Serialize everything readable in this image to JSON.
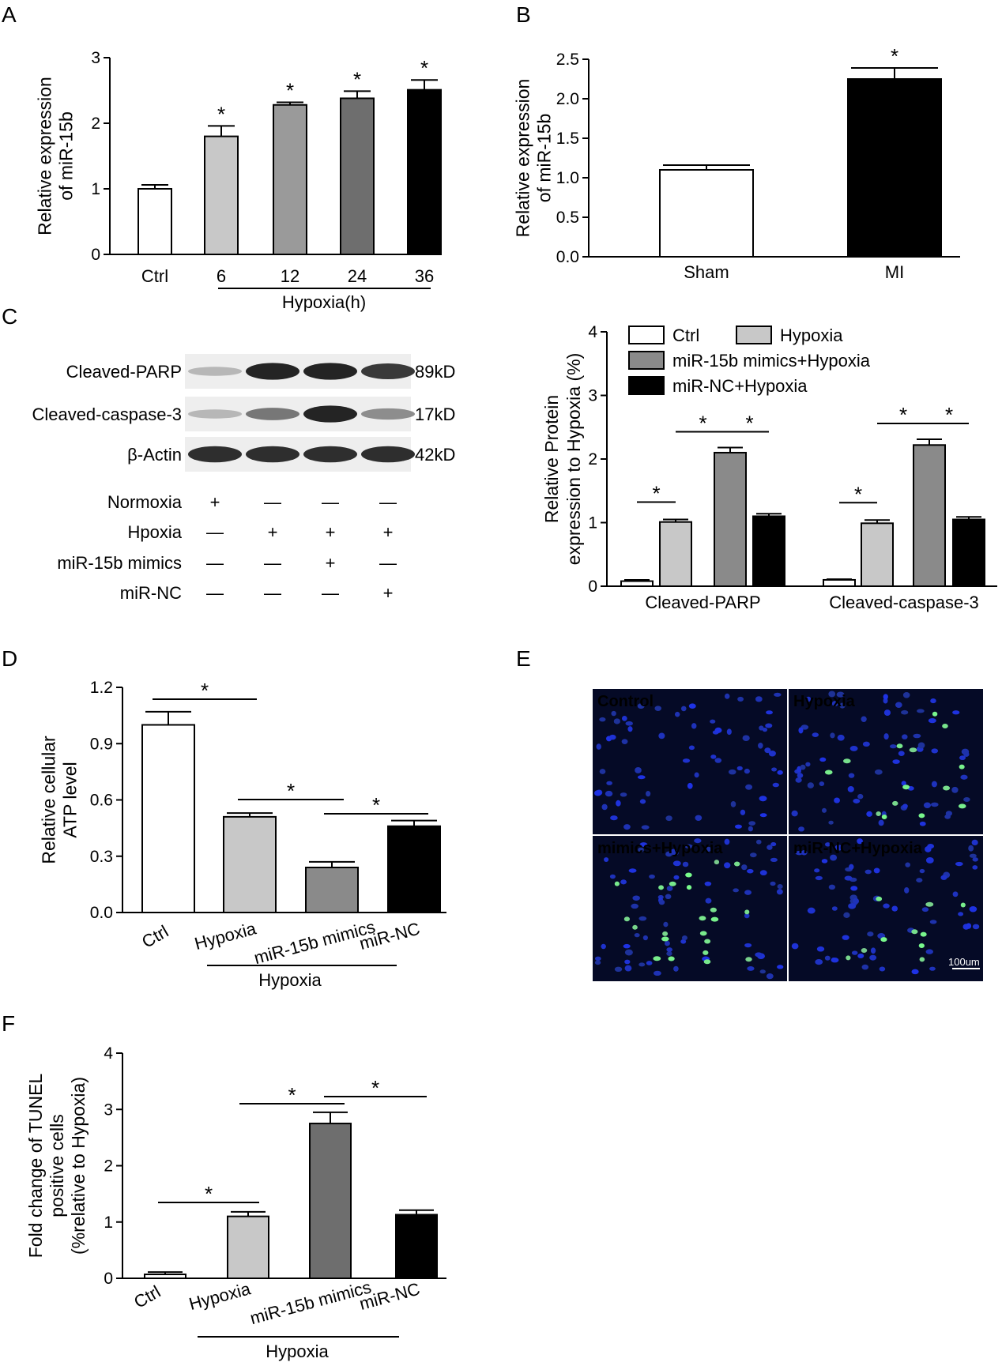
{
  "panels": {
    "A": {
      "label": "A",
      "chart_data": {
        "type": "bar",
        "categories": [
          "Ctrl",
          "6",
          "12",
          "24",
          "36"
        ],
        "values": [
          1.0,
          1.8,
          2.28,
          2.38,
          2.51
        ],
        "errors": [
          0.06,
          0.16,
          0.04,
          0.11,
          0.15
        ],
        "colors": [
          "#ffffff",
          "#c8c8c8",
          "#9a9a9a",
          "#6e6e6e",
          "#000000"
        ],
        "significant": [
          false,
          true,
          true,
          true,
          true
        ],
        "ylabel": [
          "Relative  expression",
          "of miR-15b"
        ],
        "ylim": [
          0,
          3
        ],
        "yticks": [
          "0",
          "1",
          "2",
          "3"
        ],
        "group_label": "Hypoxia(h)",
        "star": "*"
      }
    },
    "B": {
      "label": "B",
      "chart_data": {
        "type": "bar",
        "categories": [
          "Sham",
          "MI"
        ],
        "values": [
          1.1,
          2.25
        ],
        "errors": [
          0.06,
          0.14
        ],
        "colors": [
          "#ffffff",
          "#000000"
        ],
        "significant": [
          false,
          true
        ],
        "ylabel": [
          "Relative  expression",
          "of miR-15b"
        ],
        "ylim": [
          0,
          2.5
        ],
        "yticks": [
          "0.0",
          "0.5",
          "1.0",
          "1.5",
          "2.0",
          "2.5"
        ],
        "star": "*"
      }
    },
    "C": {
      "label": "C",
      "blot": {
        "rows": [
          {
            "name": "Cleaved-PARP",
            "size": "89kD",
            "intensity": [
              0.25,
              0.95,
              0.95,
              0.85
            ]
          },
          {
            "name": "Cleaved-caspase-3",
            "size": "17kD",
            "intensity": [
              0.25,
              0.55,
              0.95,
              0.45
            ]
          },
          {
            "name": "β-Actin",
            "size": "42kD",
            "intensity": [
              0.9,
              0.9,
              0.9,
              0.9
            ]
          }
        ],
        "conditions": [
          {
            "name": "Normoxia",
            "marks": [
              "+",
              "—",
              "—",
              "—"
            ]
          },
          {
            "name": "Hpoxia",
            "marks": [
              "—",
              "+",
              "+",
              "+"
            ]
          },
          {
            "name": "miR-15b mimics",
            "marks": [
              "—",
              "—",
              "+",
              "—"
            ]
          },
          {
            "name": "miR-NC",
            "marks": [
              "—",
              "—",
              "—",
              "+"
            ]
          }
        ]
      },
      "chart_data": {
        "type": "bar",
        "categories": [
          "Cleaved-PARP",
          "Cleaved-caspase-3"
        ],
        "series": [
          {
            "name": "Ctrl",
            "color": "#ffffff",
            "values": [
              0.08,
              0.1
            ],
            "errors": [
              0.02,
              0.01
            ]
          },
          {
            "name": "Hypoxia",
            "color": "#c8c8c8",
            "values": [
              1.01,
              0.99
            ],
            "errors": [
              0.04,
              0.05
            ]
          },
          {
            "name": "miR-15b mimics+Hypoxia",
            "color": "#8a8a8a",
            "values": [
              2.1,
              2.22
            ],
            "errors": [
              0.08,
              0.09
            ]
          },
          {
            "name": "miR-NC+Hypoxia",
            "color": "#000000",
            "values": [
              1.1,
              1.05
            ],
            "errors": [
              0.04,
              0.04
            ]
          }
        ],
        "ylabel": [
          "Relative Protein",
          "expression to Hypoxia (%)"
        ],
        "ylim": [
          0,
          4
        ],
        "yticks": [
          "0",
          "1",
          "2",
          "3",
          "4"
        ],
        "legend": "top",
        "star": "*"
      }
    },
    "D": {
      "label": "D",
      "chart_data": {
        "type": "bar",
        "categories": [
          "Ctrl",
          "Hypoxia",
          "miR-15b mimics",
          "miR-NC"
        ],
        "values": [
          1.0,
          0.51,
          0.24,
          0.46
        ],
        "errors": [
          0.07,
          0.02,
          0.03,
          0.03
        ],
        "colors": [
          "#ffffff",
          "#c8c8c8",
          "#8a8a8a",
          "#000000"
        ],
        "ylabel": [
          "Relative cellular",
          "ATP level"
        ],
        "ylim": [
          0,
          1.2
        ],
        "yticks": [
          "0.0",
          "0.3",
          "0.6",
          "0.9",
          "1.2"
        ],
        "group_label": "Hypoxia",
        "star": "*"
      }
    },
    "E": {
      "label": "E",
      "images": [
        {
          "label": "Control",
          "green_cells": 0
        },
        {
          "label": "Hypoxia",
          "green_cells": 14
        },
        {
          "label": "mimics+Hypoxia",
          "green_cells": 22
        },
        {
          "label": "miR-NC+Hypoxia",
          "green_cells": 10
        }
      ],
      "scale_bar": "100um"
    },
    "F": {
      "label": "F",
      "chart_data": {
        "type": "bar",
        "categories": [
          "Ctrl",
          "Hypoxia",
          "miR-15b mimics",
          "miR-NC"
        ],
        "values": [
          0.07,
          1.1,
          2.75,
          1.13
        ],
        "errors": [
          0.04,
          0.08,
          0.2,
          0.08
        ],
        "colors": [
          "#ffffff",
          "#c8c8c8",
          "#6e6e6e",
          "#000000"
        ],
        "ylabel": [
          "Fold change of TUNEL",
          "positive cells",
          "(%relative to Hypoxia)"
        ],
        "ylim": [
          0,
          4
        ],
        "yticks": [
          "0",
          "1",
          "2",
          "3",
          "4"
        ],
        "group_label": "Hypoxia",
        "star": "*"
      }
    }
  }
}
